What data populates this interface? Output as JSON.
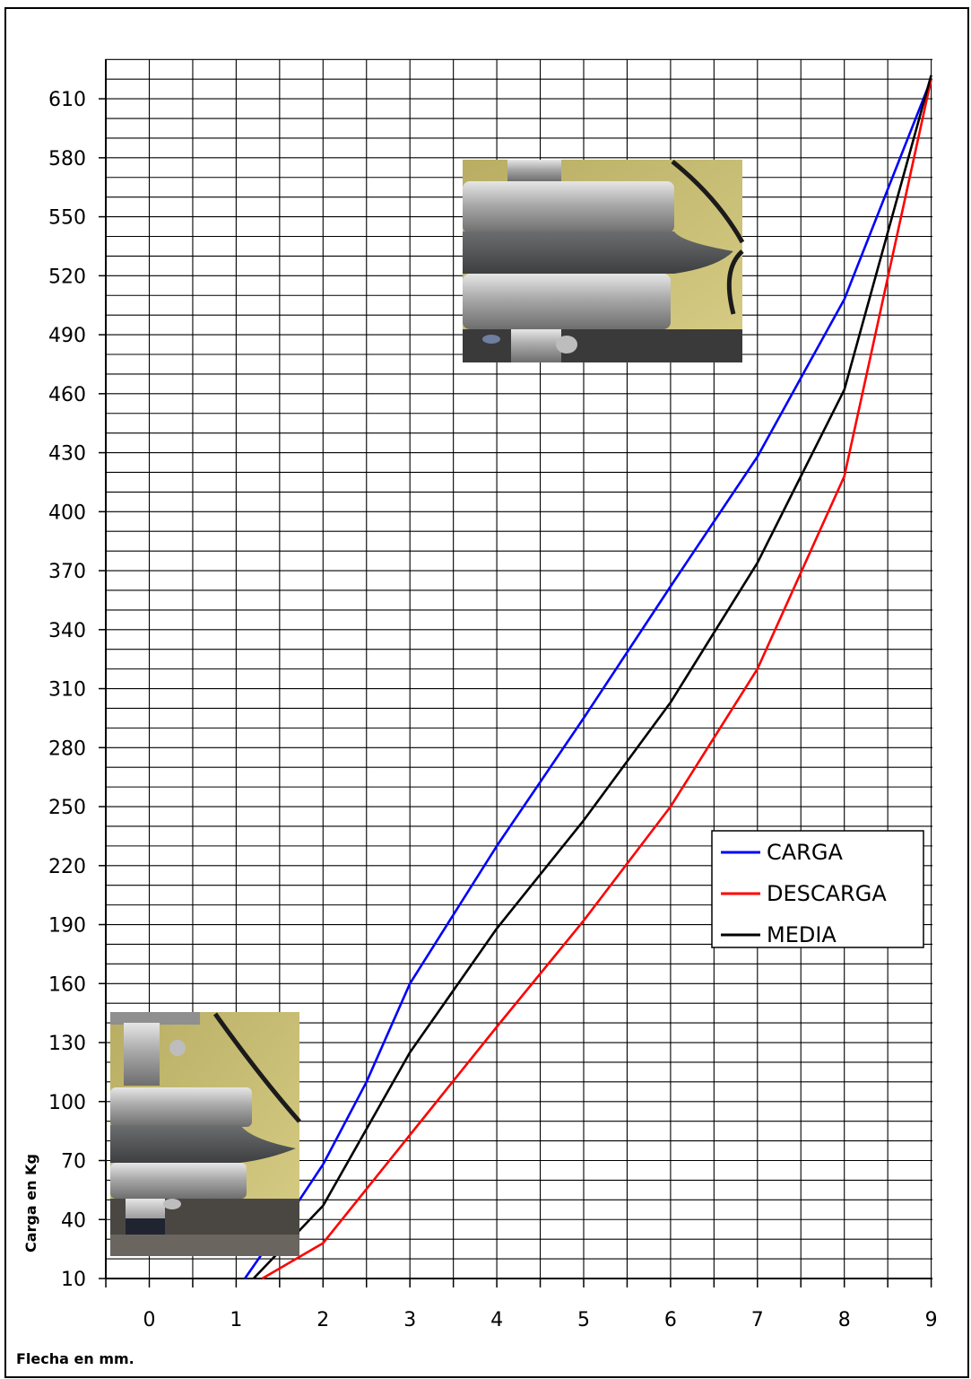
{
  "chart_data": {
    "type": "line",
    "xlabel": "Flecha en mm.",
    "ylabel": "Carga en Kg",
    "x_ticks": [
      0,
      1,
      2,
      3,
      4,
      5,
      6,
      7,
      8,
      9
    ],
    "y_ticks": [
      10,
      40,
      70,
      100,
      130,
      160,
      190,
      220,
      250,
      280,
      310,
      340,
      370,
      400,
      430,
      460,
      490,
      520,
      550,
      580,
      610
    ],
    "xlim": [
      -0.5,
      9.2
    ],
    "ylim": [
      10,
      630
    ],
    "grid": true,
    "legend_position": "right",
    "series": [
      {
        "name": "CARGA",
        "color": "#0000ff",
        "x": [
          1.1,
          1.7,
          2.0,
          2.5,
          3.0,
          4.0,
          5.0,
          6.0,
          7.0,
          8.0,
          9.0
        ],
        "y": [
          10,
          48,
          68,
          110,
          160,
          230,
          295,
          362,
          428,
          508,
          620
        ]
      },
      {
        "name": "DESCARGA",
        "color": "#ff0000",
        "x": [
          1.3,
          2.0,
          3.0,
          4.0,
          5.0,
          6.0,
          7.0,
          8.0,
          9.0
        ],
        "y": [
          10,
          28,
          83,
          138,
          192,
          250,
          320,
          418,
          620
        ]
      },
      {
        "name": "MEDIA",
        "color": "#000000",
        "x": [
          1.2,
          2.0,
          3.0,
          4.0,
          5.0,
          6.0,
          7.0,
          8.0,
          9.0
        ],
        "y": [
          10,
          47,
          125,
          188,
          243,
          303,
          374,
          462,
          622
        ]
      }
    ]
  },
  "photos": [
    {
      "name": "top-inset-photo",
      "description_icon": "spring-compression-photo-icon"
    },
    {
      "name": "bottom-inset-photo",
      "description_icon": "spring-compression-photo-icon"
    }
  ]
}
